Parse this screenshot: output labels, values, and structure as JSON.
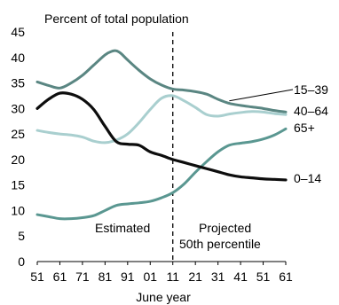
{
  "chart_data": {
    "type": "line",
    "subtitle": "Percent of total population",
    "xlabel": "June year",
    "ylabel": "",
    "ylim": [
      0,
      45
    ],
    "yticks": [
      0,
      5,
      10,
      15,
      20,
      25,
      30,
      35,
      40,
      45
    ],
    "xlim": [
      1951,
      2061
    ],
    "xticks": [
      {
        "year": 1951,
        "label": "51"
      },
      {
        "year": 1961,
        "label": "61"
      },
      {
        "year": 1971,
        "label": "71"
      },
      {
        "year": 1981,
        "label": "81"
      },
      {
        "year": 1991,
        "label": "91"
      },
      {
        "year": 2001,
        "label": "01"
      },
      {
        "year": 2011,
        "label": "11"
      },
      {
        "year": 2021,
        "label": "21"
      },
      {
        "year": 2031,
        "label": "31"
      },
      {
        "year": 2041,
        "label": "41"
      },
      {
        "year": 2051,
        "label": "51"
      },
      {
        "year": 2061,
        "label": "61"
      }
    ],
    "divider_year": 2011,
    "annotations": {
      "left": "Estimated",
      "right_line1": "Projected",
      "right_line2": "50th percentile"
    },
    "grid": false,
    "series": [
      {
        "name": "15–39",
        "color": "#5a8682",
        "x": [
          1951,
          1956,
          1961,
          1966,
          1971,
          1976,
          1981,
          1984,
          1986,
          1988,
          1991,
          1996,
          2001,
          2006,
          2011,
          2016,
          2021,
          2026,
          2031,
          2036,
          2041,
          2046,
          2051,
          2056,
          2061
        ],
        "y": [
          35.2,
          34.5,
          34.0,
          35.0,
          36.5,
          38.5,
          40.5,
          41.2,
          41.3,
          40.8,
          39.5,
          37.5,
          35.8,
          34.6,
          33.8,
          33.6,
          33.3,
          32.8,
          31.8,
          31.0,
          30.6,
          30.3,
          30.0,
          29.6,
          29.3
        ]
      },
      {
        "name": "40–64",
        "color": "#a9cfcf",
        "x": [
          1951,
          1956,
          1961,
          1966,
          1971,
          1976,
          1981,
          1986,
          1991,
          1996,
          2001,
          2006,
          2011,
          2016,
          2021,
          2026,
          2031,
          2036,
          2041,
          2046,
          2051,
          2056,
          2061
        ],
        "y": [
          25.7,
          25.3,
          25.0,
          24.8,
          24.4,
          23.6,
          23.3,
          23.8,
          25.0,
          27.2,
          29.8,
          32.0,
          32.5,
          31.5,
          30.2,
          28.8,
          28.5,
          28.9,
          29.2,
          29.4,
          29.3,
          29.0,
          28.8
        ]
      },
      {
        "name": "65+",
        "color": "#5a9791",
        "x": [
          1951,
          1956,
          1961,
          1966,
          1971,
          1976,
          1981,
          1986,
          1991,
          1996,
          2001,
          2006,
          2011,
          2016,
          2021,
          2026,
          2031,
          2036,
          2041,
          2046,
          2051,
          2056,
          2061
        ],
        "y": [
          9.2,
          8.8,
          8.4,
          8.4,
          8.6,
          9.0,
          10.0,
          11.0,
          11.3,
          11.5,
          11.8,
          12.5,
          13.5,
          15.2,
          17.5,
          19.6,
          21.5,
          22.8,
          23.2,
          23.5,
          24.0,
          24.8,
          26.0
        ]
      },
      {
        "name": "0–14",
        "color": "#0d0d0d",
        "x": [
          1951,
          1956,
          1961,
          1966,
          1971,
          1976,
          1981,
          1986,
          1991,
          1996,
          2001,
          2006,
          2011,
          2016,
          2021,
          2026,
          2031,
          2036,
          2041,
          2046,
          2051,
          2056,
          2061
        ],
        "y": [
          30.0,
          31.8,
          33.0,
          32.8,
          31.8,
          29.8,
          26.5,
          23.5,
          23.0,
          22.8,
          21.5,
          20.8,
          20.0,
          19.4,
          18.8,
          18.2,
          17.6,
          17.0,
          16.6,
          16.4,
          16.2,
          16.1,
          16.0
        ]
      }
    ]
  }
}
